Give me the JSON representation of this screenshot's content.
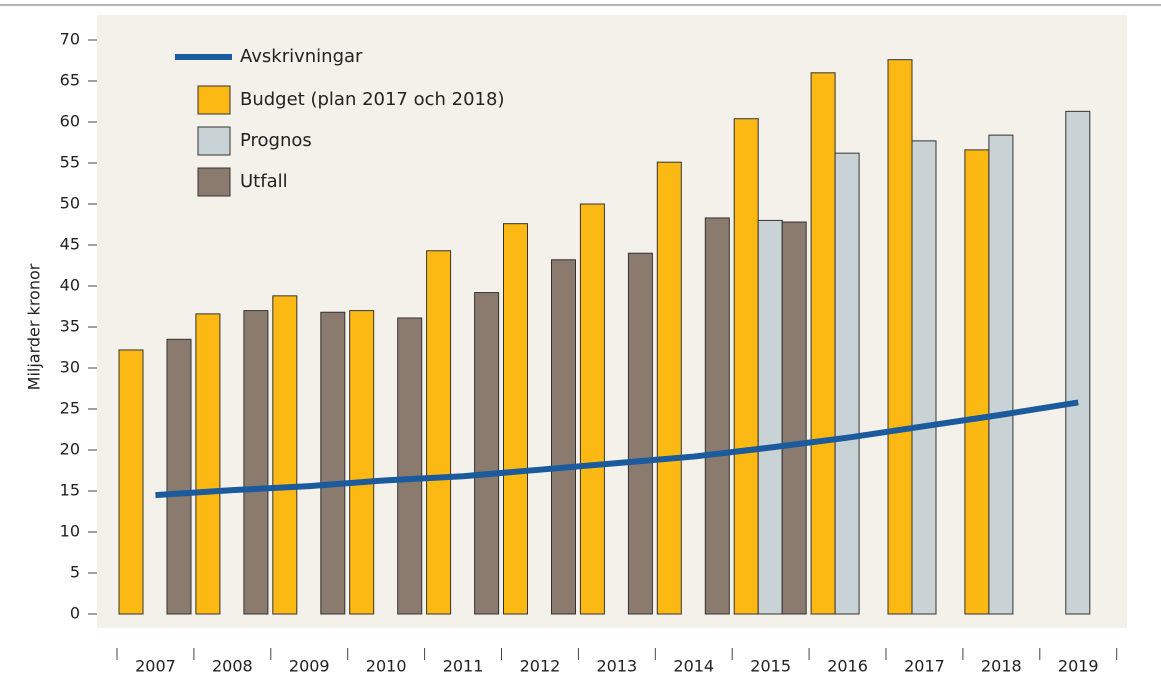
{
  "chart_data": {
    "type": "bar",
    "y_label": "Miljarder kronor",
    "categories": [
      "2007",
      "2008",
      "2009",
      "2010",
      "2011",
      "2012",
      "2013",
      "2014",
      "2015",
      "2016",
      "2017",
      "2018",
      "2019"
    ],
    "series": [
      {
        "name": "Avskrivningar",
        "type": "line",
        "color": "#1b5a9c",
        "values": [
          14.5,
          15.1,
          15.6,
          16.3,
          16.8,
          17.6,
          18.4,
          19.2,
          20.3,
          21.5,
          22.9,
          24.3,
          25.8
        ]
      },
      {
        "name": "Budget (plan 2017 och 2018)",
        "type": "bar",
        "color": "#fdb913",
        "values": [
          32.2,
          36.6,
          38.8,
          37,
          44.3,
          47.6,
          50,
          55.1,
          60.4,
          66,
          67.6,
          56.6,
          null
        ]
      },
      {
        "name": "Prognos",
        "type": "bar",
        "color": "#c9d3d6",
        "values": [
          null,
          null,
          null,
          null,
          null,
          null,
          null,
          null,
          48,
          56.2,
          57.7,
          58.4,
          61.3
        ]
      },
      {
        "name": "Utfall",
        "type": "bar",
        "color": "#8b7b6e",
        "values": [
          33.5,
          37,
          36.8,
          36.1,
          39.2,
          43.2,
          44,
          48.3,
          47.8,
          null,
          null,
          null,
          null
        ]
      }
    ],
    "ylim": [
      0,
      70
    ],
    "yticks": [
      0,
      5,
      10,
      15,
      20,
      25,
      30,
      35,
      40,
      45,
      50,
      55,
      60,
      65,
      70
    ]
  }
}
